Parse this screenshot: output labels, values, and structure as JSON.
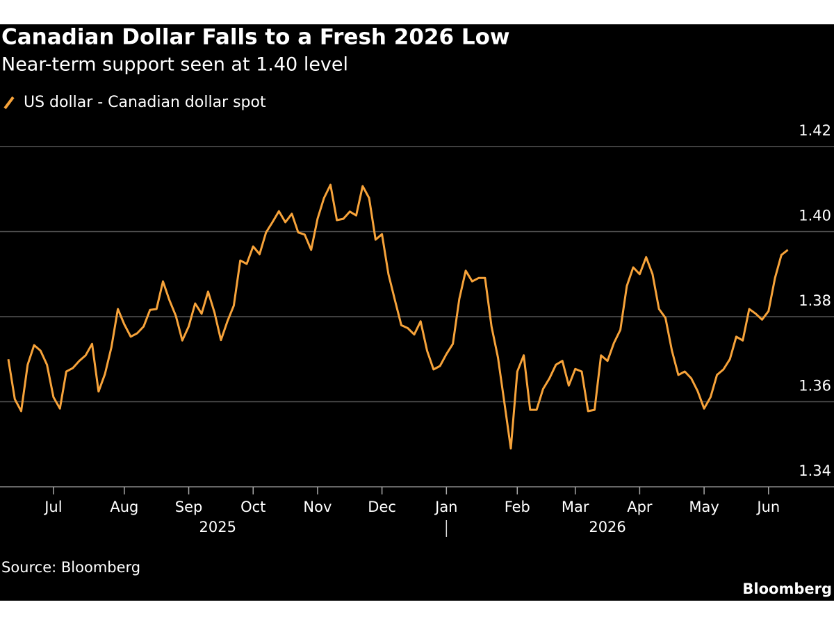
{
  "chart_data": {
    "type": "line",
    "title": "Canadian Dollar Falls to a Fresh 2026 Low",
    "subtitle": "Near-term support seen at 1.40 level",
    "source": "Source: Bloomberg",
    "brand": "Bloomberg",
    "categories": [
      null,
      null,
      null,
      null,
      null,
      null,
      null,
      "Jul",
      null,
      null,
      null,
      null,
      null,
      null,
      null,
      null,
      null,
      null,
      "Aug",
      null,
      null,
      null,
      null,
      null,
      null,
      null,
      null,
      null,
      "Sep",
      null,
      null,
      null,
      null,
      null,
      null,
      null,
      null,
      null,
      "Oct",
      null,
      null,
      null,
      null,
      null,
      null,
      null,
      null,
      null,
      "Nov",
      null,
      null,
      null,
      null,
      null,
      null,
      null,
      null,
      null,
      "Dec",
      null,
      null,
      null,
      null,
      null,
      null,
      null,
      null,
      null,
      "Jan",
      null,
      null,
      null,
      null,
      null,
      null,
      null,
      null,
      null,
      null,
      "Feb",
      null,
      null,
      null,
      null,
      null,
      null,
      null,
      null,
      "Mar",
      null,
      null,
      null,
      null,
      null,
      null,
      null,
      null,
      null,
      "Apr",
      null,
      null,
      null,
      null,
      null,
      null,
      null,
      null,
      null,
      "May",
      null,
      null,
      null,
      null,
      null,
      null,
      null,
      null,
      null,
      "Jun",
      null,
      null,
      null
    ],
    "x_groups": [
      "2025",
      "2026"
    ],
    "series": [
      {
        "name": "US dollar - Canadian dollar spot",
        "color": "#f7a33a",
        "values": [
          1.37,
          1.3606,
          1.3578,
          1.3687,
          1.3733,
          1.372,
          1.3687,
          1.3611,
          1.3584,
          1.3671,
          1.3679,
          1.3696,
          1.3709,
          1.3736,
          1.3624,
          1.3665,
          1.3728,
          1.3818,
          1.3782,
          1.3753,
          1.3761,
          1.3777,
          1.3816,
          1.3818,
          1.3883,
          1.3839,
          1.3802,
          1.3744,
          1.3777,
          1.3831,
          1.3807,
          1.3859,
          1.381,
          1.3745,
          1.3789,
          1.3826,
          1.3932,
          1.3924,
          1.3965,
          1.3947,
          1.3998,
          1.4022,
          1.4048,
          1.4022,
          1.4042,
          1.3998,
          1.3993,
          1.3957,
          1.403,
          1.4079,
          1.411,
          1.4027,
          1.403,
          1.4047,
          1.4038,
          1.4107,
          1.4079,
          1.3981,
          1.3994,
          1.39,
          1.3839,
          1.378,
          1.3773,
          1.3758,
          1.3789,
          1.372,
          1.3676,
          1.3684,
          1.3712,
          1.3736,
          1.3842,
          1.3908,
          1.3883,
          1.3891,
          1.3891,
          1.3777,
          1.3704,
          1.3598,
          1.349,
          1.3671,
          1.3709,
          1.3581,
          1.3581,
          1.363,
          1.3655,
          1.3687,
          1.3696,
          1.3638,
          1.3677,
          1.3671,
          1.3578,
          1.3581,
          1.3709,
          1.3696,
          1.3738,
          1.3769,
          1.3872,
          1.3916,
          1.39,
          1.394,
          1.39,
          1.3818,
          1.3797,
          1.372,
          1.3663,
          1.3671,
          1.3655,
          1.3625,
          1.3584,
          1.3611,
          1.3663,
          1.3676,
          1.37,
          1.3753,
          1.3744,
          1.3818,
          1.3807,
          1.3793,
          1.3813,
          1.3891,
          1.3945,
          1.3957
        ]
      }
    ],
    "ylim": [
      1.34,
      1.42
    ],
    "yticks": [
      1.34,
      1.36,
      1.38,
      {
        "value": 1.4,
        "label": "1.40"
      },
      1.42
    ],
    "grid": true
  }
}
